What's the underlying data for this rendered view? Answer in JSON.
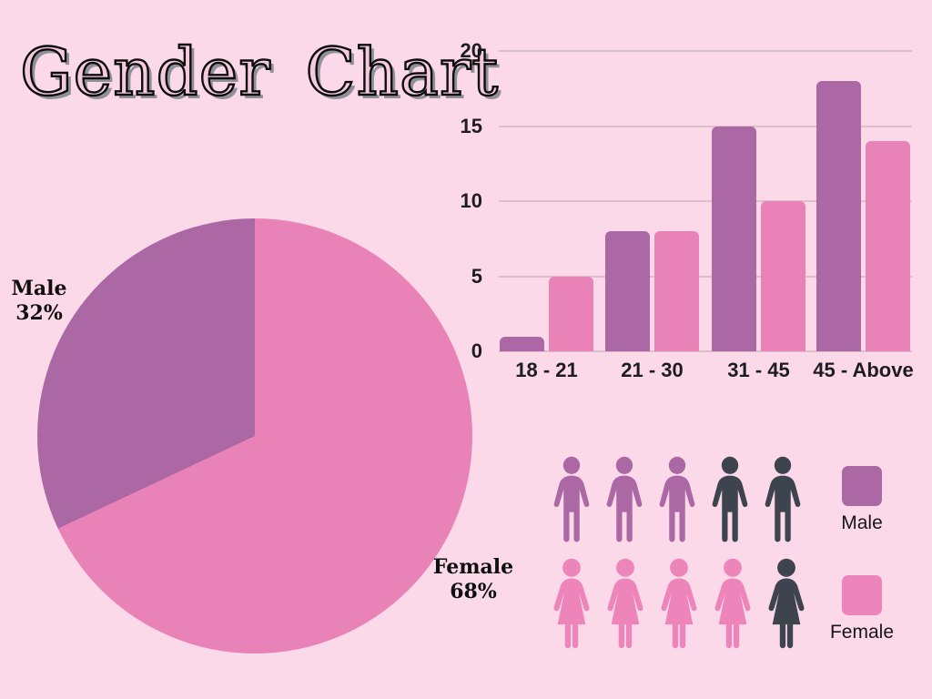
{
  "title": "Gender Chart",
  "colors": {
    "background": "#FBD9E9",
    "male_purple": "#AB68A4",
    "female_pink": "#E982B7",
    "female_pink_icon": "#ED84BA",
    "unfilled_dark": "#3E444D",
    "gridline": "#DBC0CC",
    "text_dark": "#1D1D1F"
  },
  "pie_labels": {
    "male": {
      "name": "Male",
      "pct": "32%"
    },
    "female": {
      "name": "Female",
      "pct": "68%"
    }
  },
  "icon_legend": {
    "male_label": "Male",
    "female_label": "Female"
  },
  "pictogram": {
    "rows": [
      {
        "name": "Male",
        "filled": 3,
        "total": 5,
        "fill_color": "#AB68A4",
        "rest_color": "#3E444D"
      },
      {
        "name": "Female",
        "filled": 4,
        "total": 5,
        "fill_color": "#ED84BA",
        "rest_color": "#3E444D"
      }
    ]
  },
  "chart_data": [
    {
      "type": "pie",
      "title": "Gender Chart",
      "labels": [
        "Male",
        "Female"
      ],
      "values": [
        32,
        68
      ],
      "unit": "percent",
      "colors": [
        "#AB68A4",
        "#E982B7"
      ],
      "layout": "female slice sweeps clockwise from 12 o'clock; male slice fills remainder back to top"
    },
    {
      "type": "bar",
      "categories": [
        "18 - 21",
        "21 - 30",
        "31 - 45",
        "45 - Above"
      ],
      "series": [
        {
          "name": "Male",
          "color": "#AB68A4",
          "values": [
            1,
            8,
            15,
            18
          ]
        },
        {
          "name": "Female",
          "color": "#E982B7",
          "values": [
            5,
            8,
            10,
            14
          ]
        }
      ],
      "ylim": [
        0,
        20
      ],
      "yticks": [
        0,
        5,
        10,
        15,
        20
      ],
      "grid": true,
      "legend": [
        "Male",
        "Female"
      ],
      "legend_position": "below-right as pictogram swatches"
    }
  ]
}
